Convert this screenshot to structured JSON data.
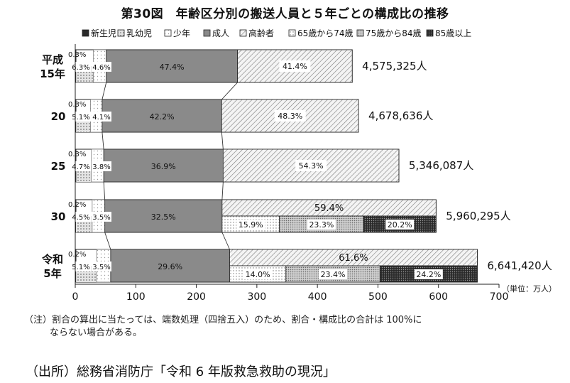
{
  "title": "第30図　年齢区分別の搬送人員と５年ごとの構成比の推移",
  "note_line1": "（注）割合の算出に当たっては、端数処理（四捨五入）のため、割合・構成比の合計は 100%に",
  "note_line2": "ならない場合がある。",
  "source": "（出所）総務省消防庁「令和 6 年版救急救助の現況」",
  "chart_data": {
    "type": "bar",
    "orientation": "horizontal",
    "stacked": true,
    "unit_label": "（単位：万人）",
    "xlim": [
      0,
      700
    ],
    "xticks": [
      "0",
      "100",
      "200",
      "300",
      "400",
      "500",
      "600",
      "700"
    ],
    "legend": [
      "新生児",
      "乳幼児",
      "少年",
      "成人",
      "高齢者",
      "65歳から74歳",
      "75歳から84歳",
      "85歳以上"
    ],
    "categories": [
      {
        "label_line1": "平成",
        "label_line2": "15年",
        "total": 457.5,
        "total_label": "4,575,325人",
        "newborn": "0.3%",
        "infant": "6.3%",
        "youth": "4.6%",
        "adult": "47.4%",
        "elderly": "41.4%",
        "adult_value": 47.4,
        "small_values": [
          0.3,
          6.3,
          4.6
        ],
        "elderly_value": 41.4
      },
      {
        "label_line1": "20",
        "label_line2": "",
        "total": 467.9,
        "total_label": "4,678,636人",
        "newborn": "0.3%",
        "infant": "5.1%",
        "youth": "4.1%",
        "adult": "42.2%",
        "elderly": "48.3%",
        "adult_value": 42.2,
        "small_values": [
          0.3,
          5.1,
          4.1
        ],
        "elderly_value": 48.3
      },
      {
        "label_line1": "25",
        "label_line2": "",
        "total": 534.6,
        "total_label": "5,346,087人",
        "newborn": "0.3%",
        "infant": "4.7%",
        "youth": "3.8%",
        "adult": "36.9%",
        "elderly": "54.3%",
        "adult_value": 36.9,
        "small_values": [
          0.3,
          4.7,
          3.8
        ],
        "elderly_value": 54.3
      },
      {
        "label_line1": "30",
        "label_line2": "",
        "total": 596.0,
        "total_label": "5,960,295人",
        "newborn": "0.2%",
        "infant": "4.5%",
        "youth": "3.5%",
        "adult": "32.5%",
        "elderly": "59.4%",
        "adult_value": 32.5,
        "small_values": [
          0.2,
          4.5,
          3.5
        ],
        "elderly_value": 59.4,
        "sub": [
          {
            "label": "15.9%",
            "value": 15.9
          },
          {
            "label": "23.3%",
            "value": 23.3
          },
          {
            "label": "20.2%",
            "value": 20.2
          }
        ]
      },
      {
        "label_line1": "令和",
        "label_line2": "5年",
        "total": 664.1,
        "total_label": "6,641,420人",
        "newborn": "0.2%",
        "infant": "5.1%",
        "youth": "3.5%",
        "adult": "29.6%",
        "elderly": "61.6%",
        "adult_value": 29.6,
        "small_values": [
          0.2,
          5.1,
          3.5
        ],
        "elderly_value": 61.6,
        "sub": [
          {
            "label": "14.0%",
            "value": 14.0
          },
          {
            "label": "23.4%",
            "value": 23.4
          },
          {
            "label": "24.2%",
            "value": 24.2
          }
        ]
      }
    ],
    "colors": {
      "adult": "#8a8a8a",
      "elderly_bg": "#f2f2f2",
      "frame": "#222222",
      "sub85": "#333333"
    }
  }
}
